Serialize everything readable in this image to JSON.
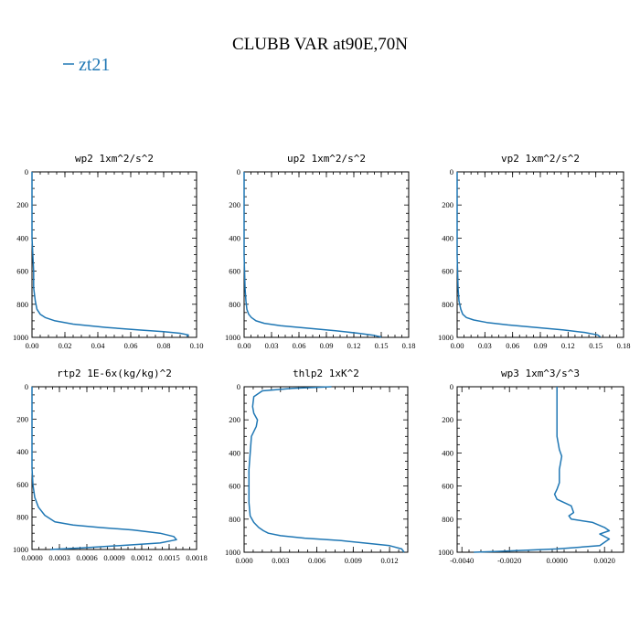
{
  "title": "CLUBB VAR at90E,70N",
  "legend": {
    "label": "zt21",
    "color": "#1f77b4"
  },
  "chart_data": [
    {
      "type": "line",
      "title": "wp2  1xm^2/s^2",
      "xlim": [
        0,
        0.1
      ],
      "ylim": [
        0,
        1000
      ],
      "y_inverted": true,
      "xticks": [
        "0.00",
        "0.02",
        "0.04",
        "0.06",
        "0.08",
        "0.10"
      ],
      "xtick_values": [
        0,
        0.02,
        0.04,
        0.06,
        0.08,
        0.1
      ],
      "yticks": [
        "0",
        "200",
        "400",
        "600",
        "800",
        "1000"
      ],
      "series": [
        {
          "name": "zt21",
          "color": "#1f77b4",
          "x": [
            0.0,
            0.0,
            0.001,
            0.001,
            0.002,
            0.003,
            0.005,
            0.008,
            0.014,
            0.025,
            0.045,
            0.065,
            0.08,
            0.09,
            0.095,
            0.094
          ],
          "y": [
            0,
            400,
            600,
            700,
            780,
            830,
            860,
            880,
            900,
            920,
            940,
            955,
            965,
            975,
            985,
            995
          ]
        }
      ]
    },
    {
      "type": "line",
      "title": "up2  1xm^2/s^2",
      "xlim": [
        0,
        0.18
      ],
      "ylim": [
        0,
        1000
      ],
      "y_inverted": true,
      "xticks": [
        "0.00",
        "0.03",
        "0.06",
        "0.09",
        "0.12",
        "0.15",
        "0.18"
      ],
      "xtick_values": [
        0,
        0.03,
        0.06,
        0.09,
        0.12,
        0.15,
        0.18
      ],
      "yticks": [
        "0",
        "200",
        "400",
        "600",
        "800",
        "1000"
      ],
      "series": [
        {
          "name": "zt21",
          "color": "#1f77b4",
          "x": [
            0.0,
            0.0,
            0.001,
            0.002,
            0.003,
            0.005,
            0.008,
            0.013,
            0.022,
            0.04,
            0.07,
            0.1,
            0.125,
            0.142,
            0.15
          ],
          "y": [
            0,
            500,
            700,
            780,
            830,
            860,
            880,
            900,
            915,
            930,
            945,
            960,
            975,
            988,
            998
          ]
        }
      ]
    },
    {
      "type": "line",
      "title": "vp2  1xm^2/s^2",
      "xlim": [
        0,
        0.18
      ],
      "ylim": [
        0,
        1000
      ],
      "y_inverted": true,
      "xticks": [
        "0.00",
        "0.03",
        "0.06",
        "0.09",
        "0.12",
        "0.15",
        "0.18"
      ],
      "xtick_values": [
        0,
        0.03,
        0.06,
        0.09,
        0.12,
        0.15,
        0.18
      ],
      "yticks": [
        "0",
        "200",
        "400",
        "600",
        "800",
        "1000"
      ],
      "series": [
        {
          "name": "zt21",
          "color": "#1f77b4",
          "x": [
            0.0,
            0.0,
            0.001,
            0.002,
            0.004,
            0.006,
            0.01,
            0.018,
            0.032,
            0.055,
            0.085,
            0.115,
            0.138,
            0.152,
            0.155
          ],
          "y": [
            0,
            500,
            700,
            780,
            830,
            860,
            880,
            895,
            910,
            925,
            940,
            955,
            970,
            985,
            998
          ]
        }
      ]
    },
    {
      "type": "line",
      "title": "rtp2  1E-6x(kg/kg)^2",
      "xlim": [
        0,
        0.0018
      ],
      "ylim": [
        0,
        1000
      ],
      "y_inverted": true,
      "xticks": [
        "0.0000",
        "0.0003",
        "0.0006",
        "0.0009",
        "0.0012",
        "0.0015",
        "0.0018"
      ],
      "xtick_values": [
        0,
        0.0003,
        0.0006,
        0.0009,
        0.0012,
        0.0015,
        0.0018
      ],
      "yticks": [
        "0",
        "200",
        "400",
        "600",
        "800",
        "1000"
      ],
      "series": [
        {
          "name": "zt21",
          "color": "#1f77b4",
          "x": [
            0.0,
            0.0,
            1e-05,
            3e-05,
            7e-05,
            0.00014,
            0.00025,
            0.00045,
            0.00075,
            0.0011,
            0.0014,
            0.00155,
            0.00158,
            0.0014,
            0.001,
            0.00055,
            0.0002
          ],
          "y": [
            0,
            500,
            600,
            680,
            740,
            790,
            830,
            850,
            865,
            880,
            900,
            920,
            940,
            960,
            975,
            990,
            1000
          ]
        }
      ]
    },
    {
      "type": "line",
      "title": "thlp2  1xK^2",
      "xlim": [
        0,
        0.0135
      ],
      "ylim": [
        0,
        1000
      ],
      "y_inverted": true,
      "xticks": [
        "0.000",
        "0.003",
        "0.006",
        "0.009",
        "0.012"
      ],
      "xtick_values": [
        0,
        0.003,
        0.006,
        0.009,
        0.012
      ],
      "yticks": [
        "0",
        "200",
        "400",
        "600",
        "800",
        "1000"
      ],
      "series": [
        {
          "name": "zt21",
          "color": "#1f77b4",
          "x": [
            0.0072,
            0.004,
            0.0015,
            0.0008,
            0.0007,
            0.0008,
            0.0011,
            0.001,
            0.0006,
            0.0004,
            0.0004,
            0.0005,
            0.0008,
            0.0012,
            0.0016,
            0.002,
            0.003,
            0.005,
            0.008,
            0.01,
            0.012,
            0.013,
            0.0132
          ],
          "y": [
            0,
            10,
            25,
            60,
            120,
            160,
            200,
            240,
            300,
            500,
            700,
            780,
            820,
            850,
            870,
            885,
            900,
            915,
            930,
            945,
            960,
            980,
            1000
          ]
        }
      ]
    },
    {
      "type": "line",
      "title": "wp3  1xm^3/s^3",
      "xlim": [
        -0.0042,
        0.0028
      ],
      "ylim": [
        0,
        1000
      ],
      "y_inverted": true,
      "xticks": [
        "-0.0040",
        "-0.0020",
        "0.0000",
        "0.0020"
      ],
      "xtick_values": [
        -0.004,
        -0.002,
        0,
        0.002
      ],
      "yticks": [
        "0",
        "200",
        "400",
        "600",
        "800",
        "1000"
      ],
      "series": [
        {
          "name": "zt21",
          "color": "#1f77b4",
          "x": [
            0.0,
            0.0,
            0.0001,
            0.0002,
            0.0001,
            0.0001,
            0.0,
            -0.0001,
            0.0,
            0.0003,
            0.0006,
            0.0007,
            0.0005,
            0.0006,
            0.0015,
            0.002,
            0.0022,
            0.0018,
            0.0022,
            0.0018,
            0.0,
            -0.0025,
            -0.0035
          ],
          "y": [
            0,
            300,
            380,
            420,
            500,
            580,
            620,
            650,
            680,
            700,
            720,
            760,
            780,
            800,
            820,
            850,
            870,
            890,
            920,
            960,
            980,
            995,
            1000
          ]
        }
      ]
    }
  ]
}
